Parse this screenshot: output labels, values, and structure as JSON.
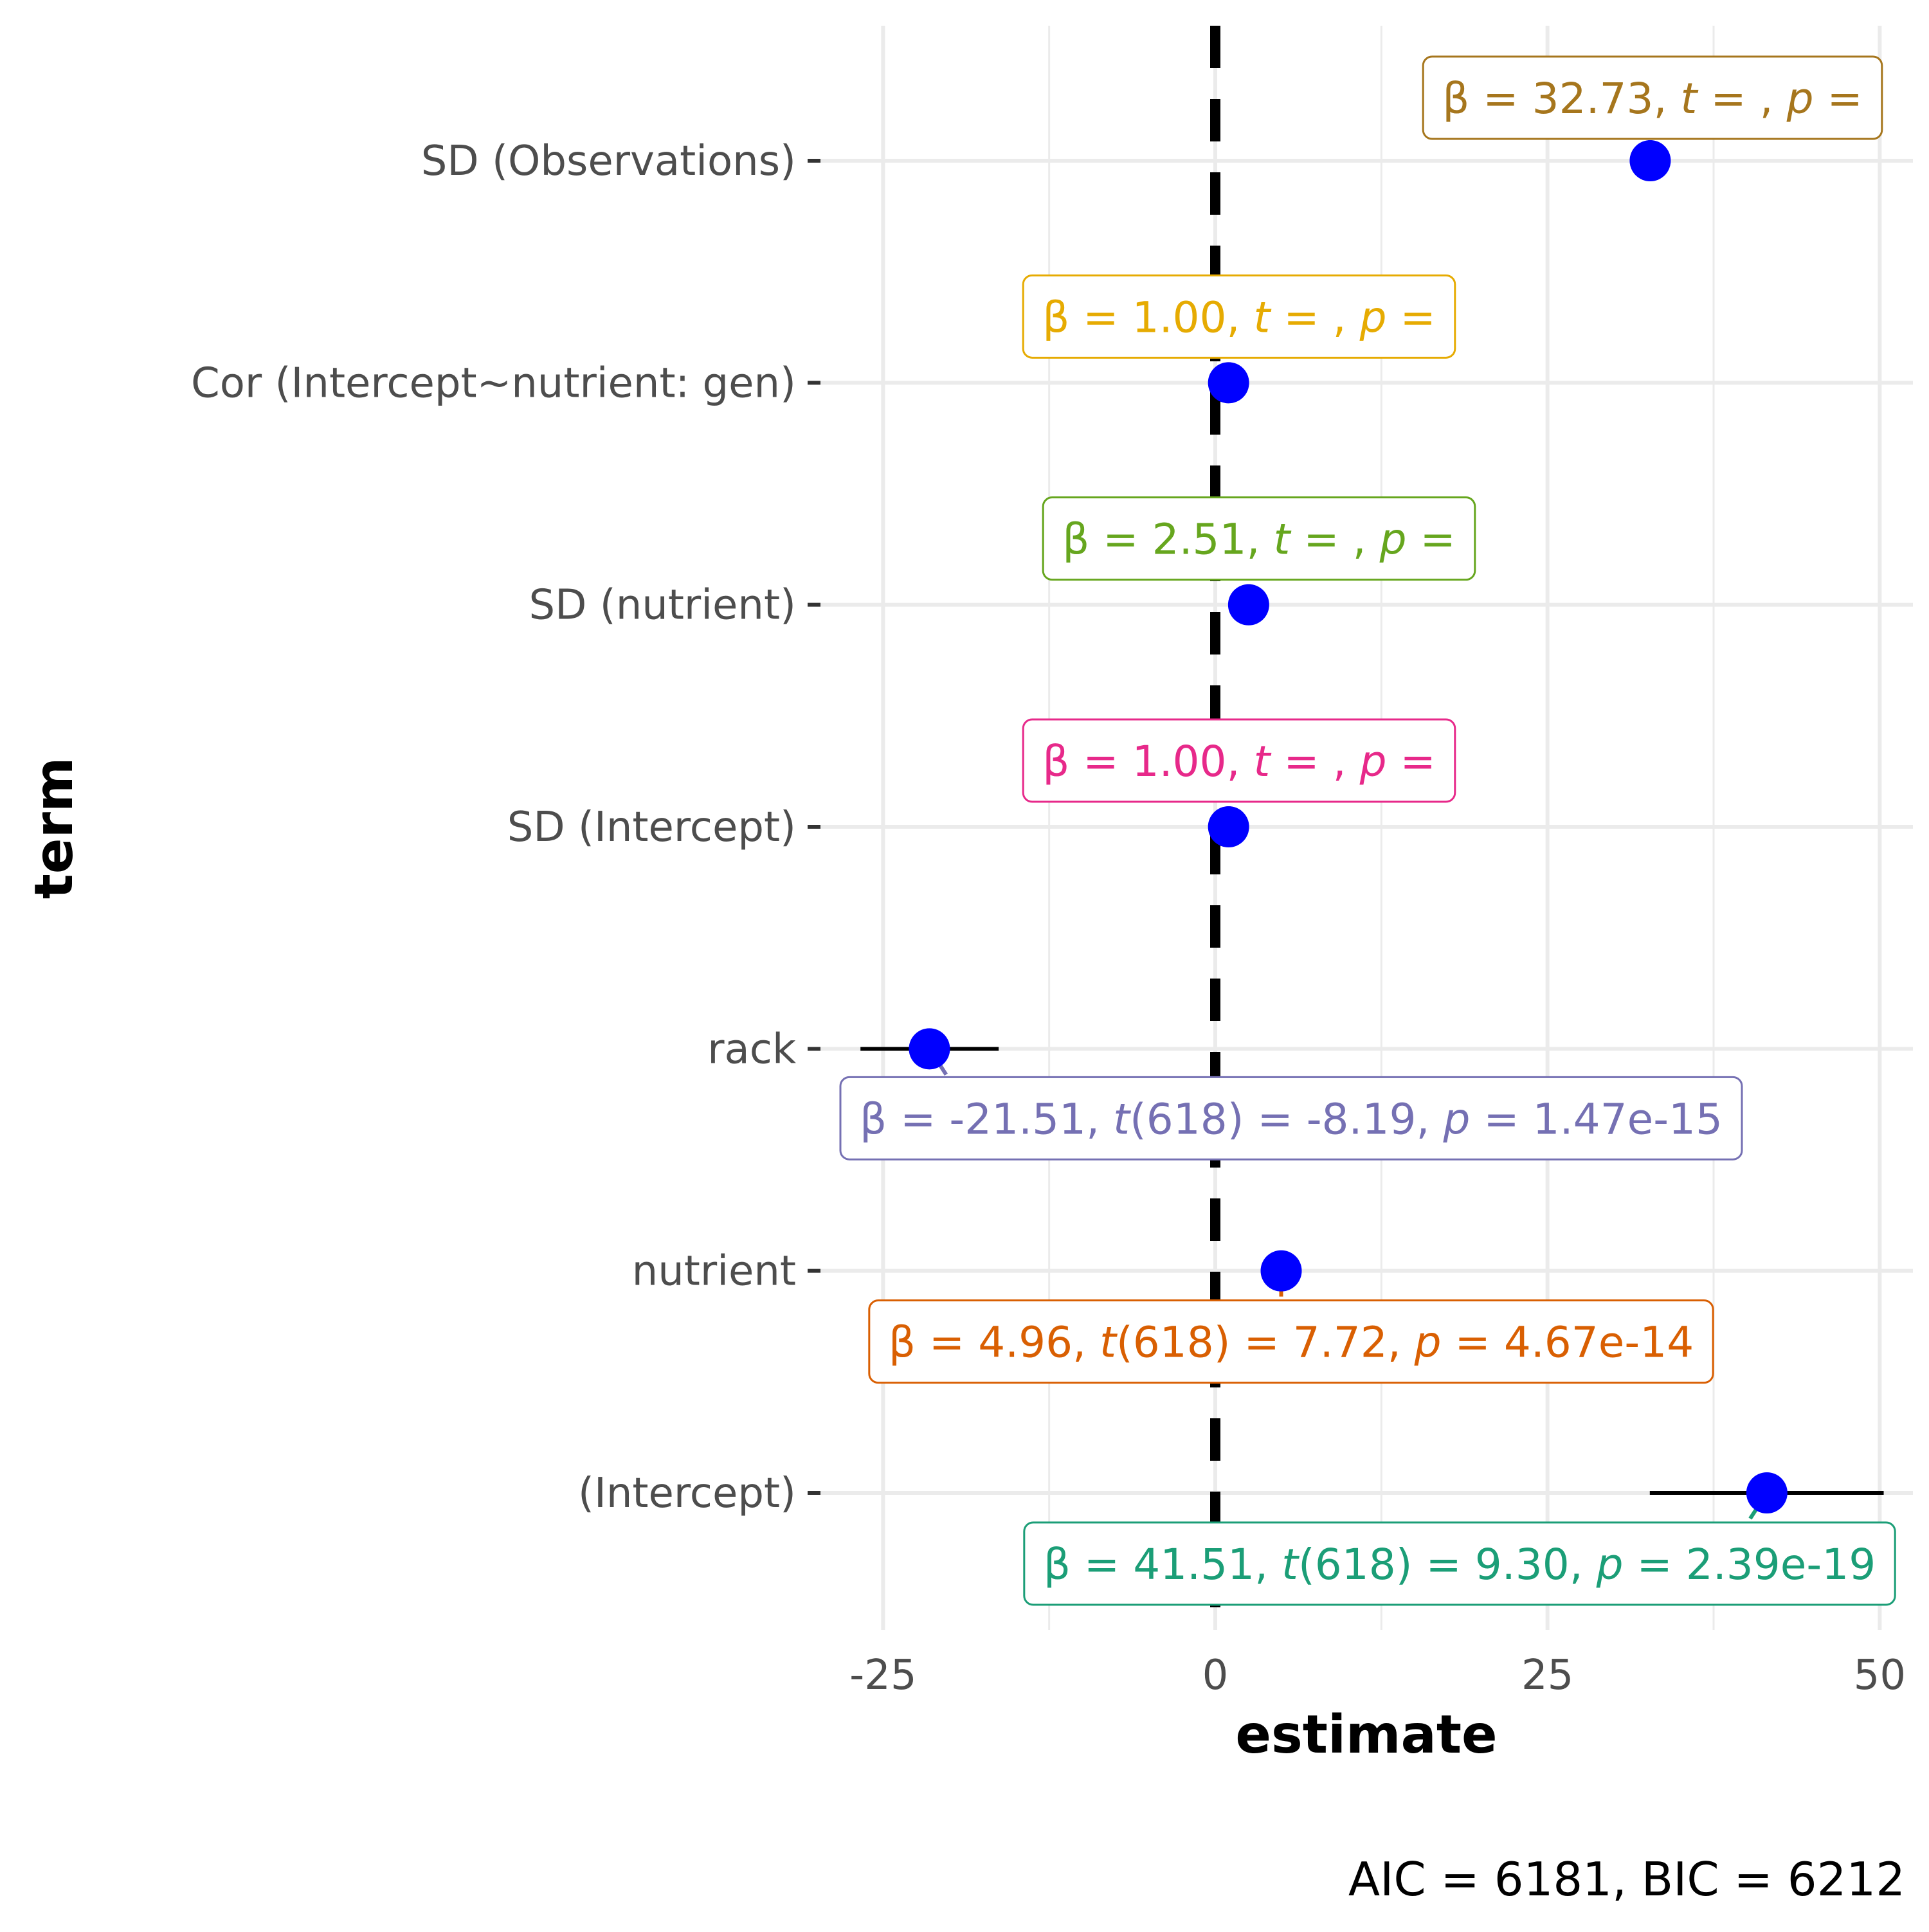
{
  "chart_data": {
    "type": "scatter",
    "subtype": "coefficient-plot",
    "xlabel": "estimate",
    "ylabel": "term",
    "xlim": [
      -30,
      52.5
    ],
    "x_ticks": [
      -25,
      0,
      25,
      50
    ],
    "x_tick_labels": [
      "-25",
      "0",
      "25",
      "50"
    ],
    "reference_line_x": 0,
    "grid": true,
    "point_color": "#0000ff",
    "caption": "AIC = 6181, BIC = 6212",
    "terms": [
      {
        "term": "SD (Observations)",
        "estimate": 32.73,
        "ci": null,
        "label_color": "#a6761d",
        "label": {
          "beta": "32.73",
          "t": "",
          "df": "",
          "p": ""
        }
      },
      {
        "term": "Cor (Intercept~nutrient: gen)",
        "estimate": 1.0,
        "ci": null,
        "label_color": "#e6ab02",
        "label": {
          "beta": "1.00",
          "t": "",
          "df": "",
          "p": ""
        }
      },
      {
        "term": "SD (nutrient)",
        "estimate": 2.51,
        "ci": null,
        "label_color": "#66a61e",
        "label": {
          "beta": "2.51",
          "t": "",
          "df": "",
          "p": ""
        }
      },
      {
        "term": "SD (Intercept)",
        "estimate": 1.0,
        "ci": null,
        "label_color": "#e7298a",
        "label": {
          "beta": "1.00",
          "t": "",
          "df": "",
          "p": ""
        }
      },
      {
        "term": "rack",
        "estimate": -21.51,
        "ci": [
          -26.7,
          -16.3
        ],
        "label_color": "#7570b3",
        "label": {
          "beta": "-21.51",
          "t": "-8.19",
          "df": "618",
          "p": "1.47e-15"
        }
      },
      {
        "term": "nutrient",
        "estimate": 4.96,
        "ci": [
          3.7,
          6.2
        ],
        "label_color": "#d95f02",
        "label": {
          "beta": "4.96",
          "t": "7.72",
          "df": "618",
          "p": "4.67e-14"
        }
      },
      {
        "term": "(Intercept)",
        "estimate": 41.51,
        "ci": [
          32.7,
          50.3
        ],
        "label_color": "#1b9e77",
        "label": {
          "beta": "41.51",
          "t": "9.30",
          "df": "618",
          "p": "2.39e-19"
        }
      }
    ]
  }
}
